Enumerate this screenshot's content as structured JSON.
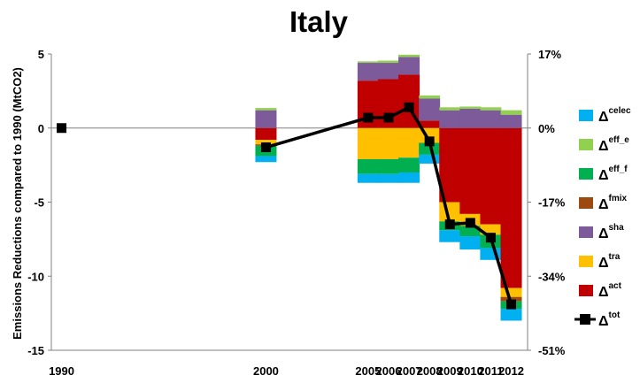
{
  "chart_data": {
    "type": "bar",
    "title": "Italy",
    "ylabel": "Emissions Reductions compared to 1990 (MtCO2)",
    "ylim": [
      -15,
      5
    ],
    "y_ticks": [
      "5",
      "0",
      "-5",
      "-10",
      "-15"
    ],
    "y2_ticks": [
      "17%",
      "0%",
      "-17%",
      "-34%",
      "-51%"
    ],
    "categories": [
      "1990",
      "2000",
      "2005",
      "2006",
      "2007",
      "2008",
      "2009",
      "2010",
      "2011",
      "2012"
    ],
    "x": [
      1990,
      2000,
      2005,
      2006,
      2007,
      2008,
      2009,
      2010,
      2011,
      2012
    ],
    "stacked": true,
    "series": [
      {
        "name": "Δ",
        "sup": "act",
        "color": "#c00000",
        "values": [
          0,
          -0.8,
          3.2,
          3.3,
          3.6,
          0.5,
          -5.0,
          -5.8,
          -6.5,
          -10.8
        ]
      },
      {
        "name": "Δ",
        "sup": "tra",
        "color": "#ffc000",
        "values": [
          0,
          -0.3,
          -2.1,
          -2.1,
          -2.0,
          -1.0,
          -1.3,
          -0.8,
          -0.7,
          -0.6
        ]
      },
      {
        "name": "Δ",
        "sup": "sha",
        "color": "#7d5a99",
        "values": [
          0,
          1.2,
          1.2,
          1.1,
          1.2,
          1.5,
          1.2,
          1.3,
          1.2,
          0.9
        ]
      },
      {
        "name": "Δ",
        "sup": "fmix",
        "color": "#9c4a10",
        "values": [
          0,
          -0.1,
          0,
          0,
          0,
          0,
          0,
          0,
          0,
          -0.3
        ]
      },
      {
        "name": "Δ",
        "sup": "eff_f",
        "color": "#00b050",
        "values": [
          0,
          -0.7,
          -1.0,
          -1.0,
          -1.0,
          -0.8,
          -0.6,
          -0.7,
          -0.9,
          -0.5
        ]
      },
      {
        "name": "Δ",
        "sup": "eff_e",
        "color": "#92d050",
        "values": [
          0,
          0.15,
          0.1,
          0.15,
          0.15,
          0.2,
          0.2,
          0.15,
          0.2,
          0.3
        ]
      },
      {
        "name": "Δ",
        "sup": "celec",
        "color": "#00b0f0",
        "values": [
          0,
          -0.4,
          -0.6,
          -0.6,
          -0.7,
          -0.6,
          -0.8,
          -0.9,
          -0.8,
          -0.8
        ]
      }
    ],
    "line": {
      "name": "Δ",
      "sup": "tot",
      "color": "#000000",
      "values": [
        0,
        -1.3,
        0.7,
        0.7,
        1.4,
        -0.9,
        -6.5,
        -6.4,
        -7.4,
        -11.9
      ]
    },
    "legend": [
      {
        "name": "Δ",
        "sup": "celec",
        "color": "#00b0f0"
      },
      {
        "name": "Δ",
        "sup": "eff_e",
        "color": "#92d050"
      },
      {
        "name": "Δ",
        "sup": "eff_f",
        "color": "#00b050"
      },
      {
        "name": "Δ",
        "sup": "fmix",
        "color": "#9c4a10"
      },
      {
        "name": "Δ",
        "sup": "sha",
        "color": "#7d5a99"
      },
      {
        "name": "Δ",
        "sup": "tra",
        "color": "#ffc000"
      },
      {
        "name": "Δ",
        "sup": "act",
        "color": "#c00000"
      },
      {
        "name": "Δ",
        "sup": "tot",
        "color": "#000000",
        "marker": "square-line"
      }
    ],
    "legend_position": "right",
    "grid": false
  }
}
